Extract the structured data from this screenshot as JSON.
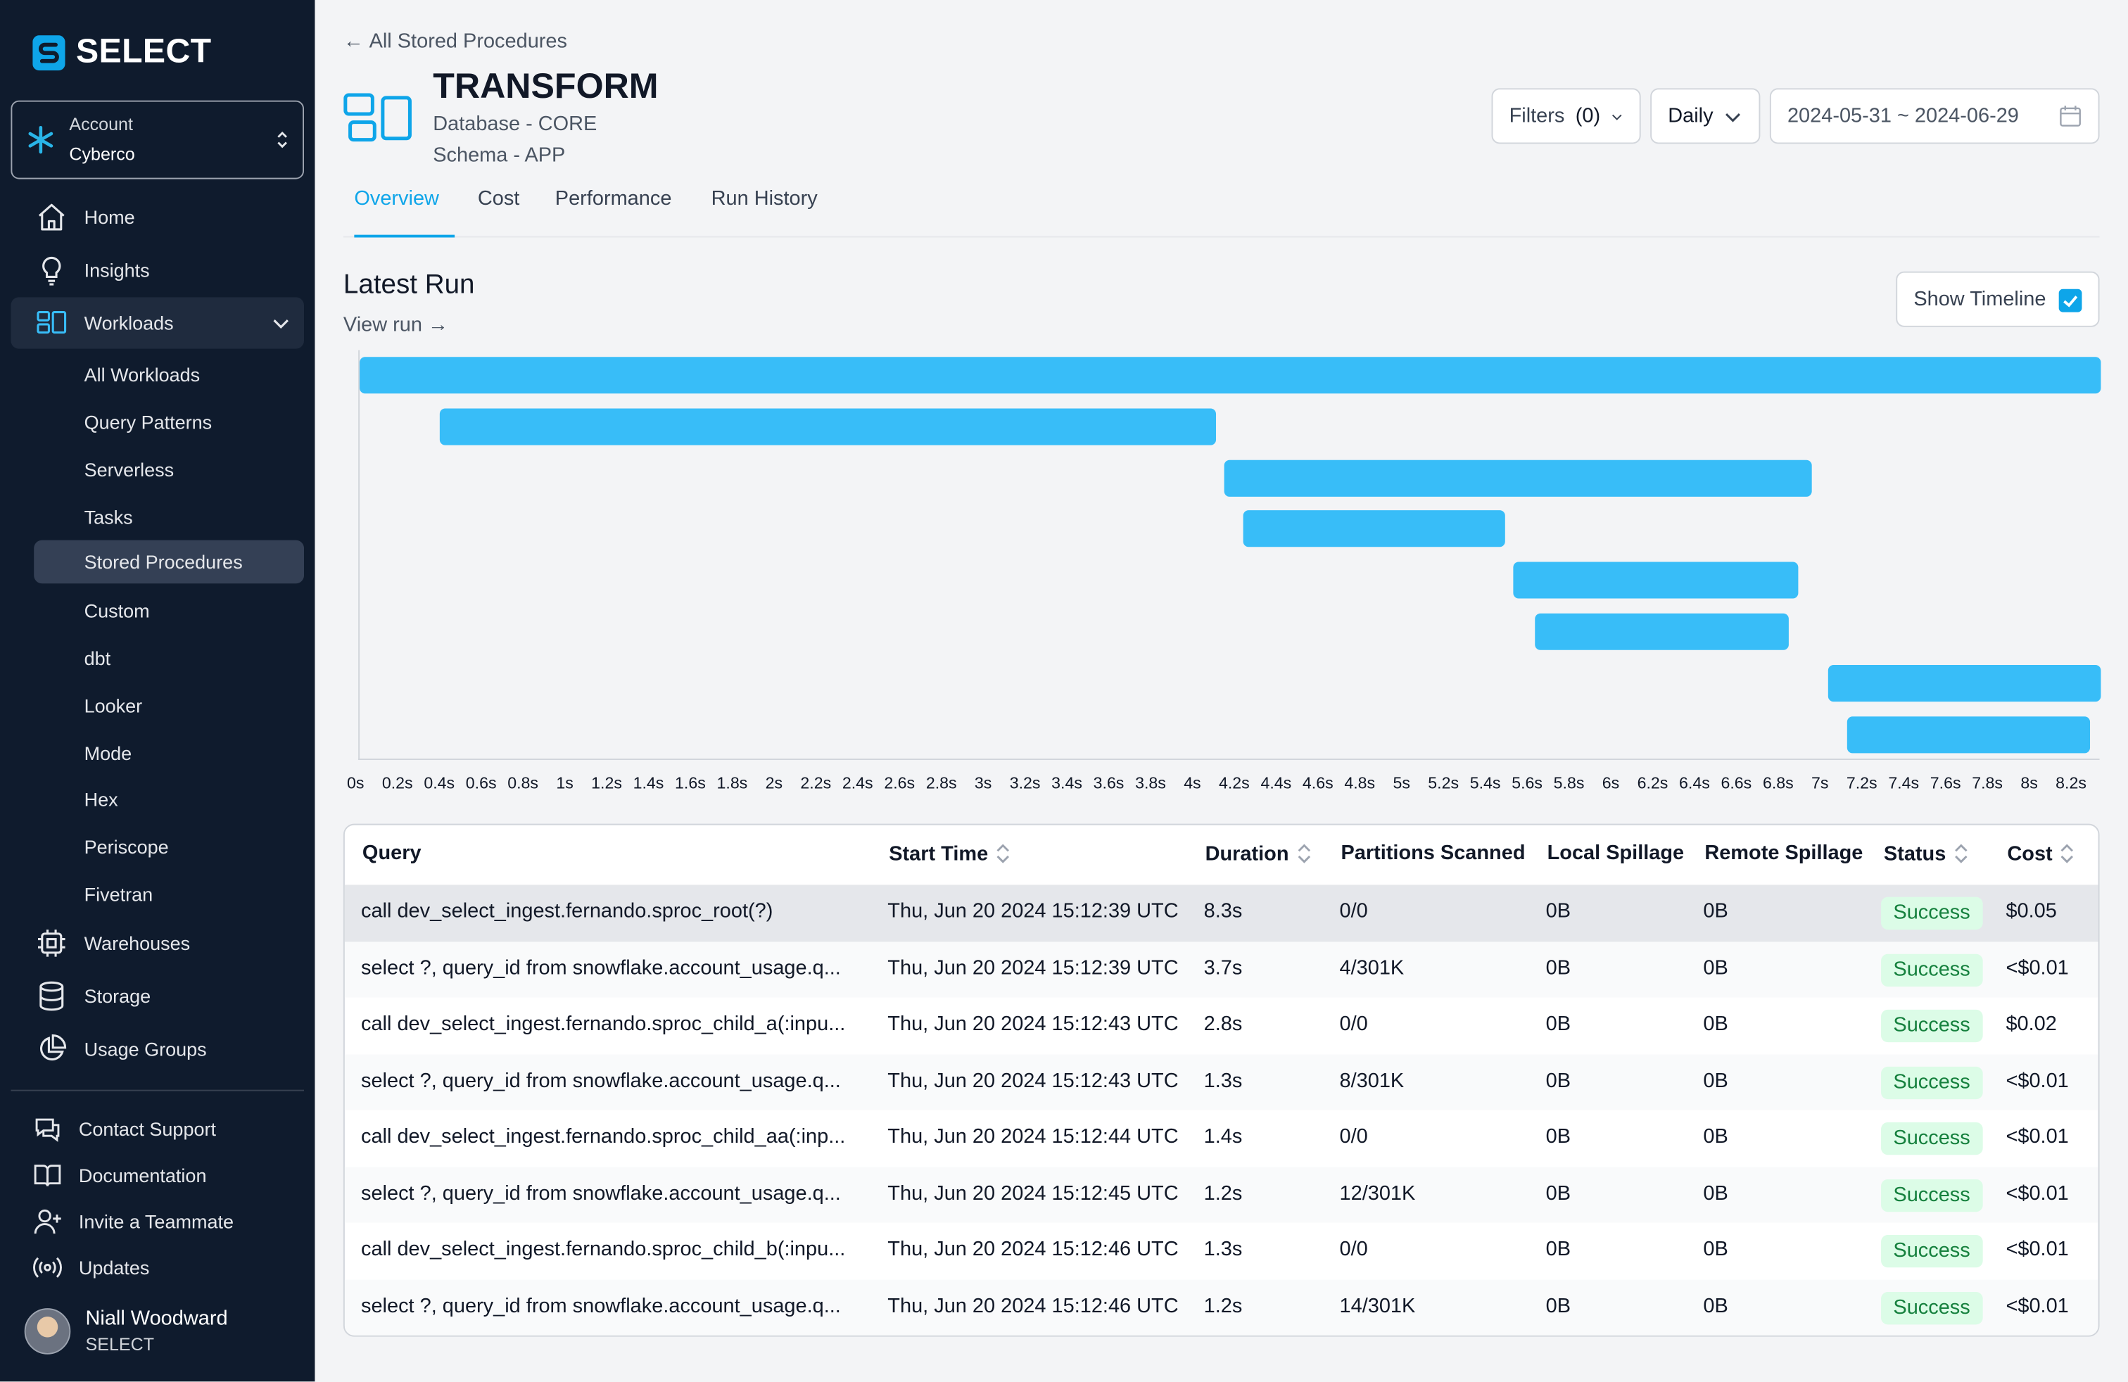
{
  "brand": {
    "name": "SELECT"
  },
  "account": {
    "label": "Account",
    "value": "Cyberco"
  },
  "nav": {
    "home": "Home",
    "insights": "Insights",
    "workloads": "Workloads",
    "sub": [
      "All Workloads",
      "Query Patterns",
      "Serverless",
      "Tasks",
      "Stored Procedures",
      "Custom",
      "dbt",
      "Looker",
      "Mode",
      "Hex",
      "Periscope",
      "Fivetran"
    ],
    "warehouses": "Warehouses",
    "storage": "Storage",
    "usage_groups": "Usage Groups"
  },
  "footer": {
    "contact": "Contact Support",
    "docs": "Documentation",
    "invite": "Invite a Teammate",
    "updates": "Updates"
  },
  "user": {
    "name": "Niall Woodward",
    "org": "SELECT"
  },
  "header": {
    "back": "All Stored Procedures",
    "title": "TRANSFORM",
    "database": "Database - CORE",
    "schema": "Schema - APP",
    "filters_label": "Filters",
    "filters_count": "(0)",
    "granularity": "Daily",
    "date_range": "2024-05-31 ~ 2024-06-29"
  },
  "tabs": [
    "Overview",
    "Cost",
    "Performance",
    "Run History"
  ],
  "latest_run": {
    "title": "Latest Run",
    "view_run": "View run →",
    "show_timeline": "Show Timeline",
    "show_timeline_checked": true
  },
  "chart_data": {
    "type": "bar",
    "orientation": "horizontal-gantt",
    "xlabel": "",
    "ylabel": "",
    "xlim": [
      0,
      8.3
    ],
    "x_ticks": [
      "0s",
      "0.2s",
      "0.4s",
      "0.6s",
      "0.8s",
      "1s",
      "1.2s",
      "1.4s",
      "1.6s",
      "1.8s",
      "2s",
      "2.2s",
      "2.4s",
      "2.6s",
      "2.8s",
      "3s",
      "3.2s",
      "3.4s",
      "3.6s",
      "3.8s",
      "4s",
      "4.2s",
      "4.4s",
      "4.6s",
      "4.8s",
      "5s",
      "5.2s",
      "5.4s",
      "5.6s",
      "5.8s",
      "6s",
      "6.2s",
      "6.4s",
      "6.6s",
      "6.8s",
      "7s",
      "7.2s",
      "7.4s",
      "7.6s",
      "7.8s",
      "8s",
      "8.2s"
    ],
    "bars": [
      {
        "start": 0.0,
        "end": 8.3
      },
      {
        "start": 0.38,
        "end": 4.08
      },
      {
        "start": 4.12,
        "end": 6.92
      },
      {
        "start": 4.21,
        "end": 5.46
      },
      {
        "start": 5.5,
        "end": 6.86
      },
      {
        "start": 5.6,
        "end": 6.81
      },
      {
        "start": 7.0,
        "end": 8.3
      },
      {
        "start": 7.09,
        "end": 8.25
      }
    ],
    "color": "#38bdf8"
  },
  "table": {
    "columns": [
      "Query",
      "Start Time",
      "Duration",
      "Partitions Scanned",
      "Local Spillage",
      "Remote Spillage",
      "Status",
      "Cost"
    ],
    "rows": [
      [
        "call dev_select_ingest.fernando.sproc_root(?)",
        "Thu, Jun 20 2024 15:12:39 UTC",
        "8.3s",
        "0/0",
        "0B",
        "0B",
        "Success",
        "$0.05"
      ],
      [
        "select ?, query_id from snowflake.account_usage.q...",
        "Thu, Jun 20 2024 15:12:39 UTC",
        "3.7s",
        "4/301K",
        "0B",
        "0B",
        "Success",
        "<$0.01"
      ],
      [
        "call dev_select_ingest.fernando.sproc_child_a(:inpu...",
        "Thu, Jun 20 2024 15:12:43 UTC",
        "2.8s",
        "0/0",
        "0B",
        "0B",
        "Success",
        "$0.02"
      ],
      [
        "select ?, query_id from snowflake.account_usage.q...",
        "Thu, Jun 20 2024 15:12:43 UTC",
        "1.3s",
        "8/301K",
        "0B",
        "0B",
        "Success",
        "<$0.01"
      ],
      [
        "call dev_select_ingest.fernando.sproc_child_aa(:inp...",
        "Thu, Jun 20 2024 15:12:44 UTC",
        "1.4s",
        "0/0",
        "0B",
        "0B",
        "Success",
        "<$0.01"
      ],
      [
        "select ?, query_id from snowflake.account_usage.q...",
        "Thu, Jun 20 2024 15:12:45 UTC",
        "1.2s",
        "12/301K",
        "0B",
        "0B",
        "Success",
        "<$0.01"
      ],
      [
        "call dev_select_ingest.fernando.sproc_child_b(:inpu...",
        "Thu, Jun 20 2024 15:12:46 UTC",
        "1.3s",
        "0/0",
        "0B",
        "0B",
        "Success",
        "<$0.01"
      ],
      [
        "select ?, query_id from snowflake.account_usage.q...",
        "Thu, Jun 20 2024 15:12:46 UTC",
        "1.2s",
        "14/301K",
        "0B",
        "0B",
        "Success",
        "<$0.01"
      ]
    ]
  },
  "icons": {
    "home": "home-icon",
    "insights": "lightbulb-icon",
    "workloads": "workloads-icon",
    "warehouses": "chip-icon",
    "storage": "database-icon",
    "usage_groups": "pie-chart-icon",
    "contact": "chat-icon",
    "docs": "book-icon",
    "invite": "user-plus-icon",
    "updates": "broadcast-icon"
  },
  "colors": {
    "sidebar": "#0f1b2d",
    "accent": "#0ea5e9",
    "bar": "#38bdf8",
    "success_bg": "#dcfce7",
    "success_fg": "#15803d"
  }
}
